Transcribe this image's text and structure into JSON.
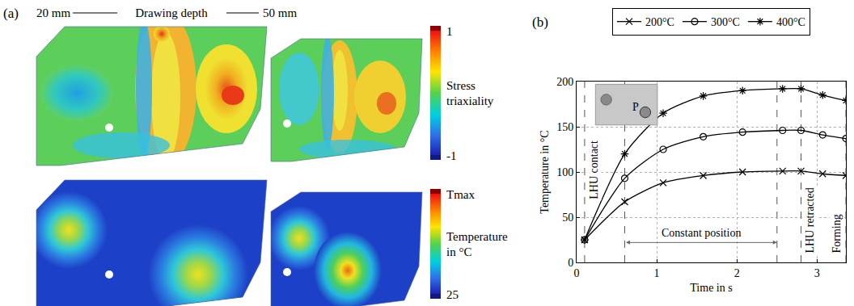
{
  "panel_a": {
    "label": "(a)",
    "header": [
      "20 mm",
      "Drawing depth",
      "50 mm"
    ],
    "colorbars": [
      {
        "title": "Stress triaxiality",
        "top": 1,
        "bottom": -1
      },
      {
        "title": "Temperature in °C",
        "top": "Tmax",
        "bottom": 25
      }
    ]
  },
  "chart_data": {
    "type": "line",
    "panel_label": "(b)",
    "x_label": "Time in s",
    "y_label": "Temperature in °C",
    "x": [
      0.1,
      0.6,
      1.08,
      1.58,
      2.07,
      2.57,
      2.8,
      3.07,
      3.36
    ],
    "series": [
      {
        "name": "200°C",
        "color": "#000000",
        "marker": "x",
        "values": [
          25,
          67,
          88,
          96,
          100,
          101,
          101,
          98,
          96
        ]
      },
      {
        "name": "300°C",
        "color": "#000000",
        "marker": "circle-open",
        "values": [
          25,
          93,
          125,
          139,
          144,
          146,
          146,
          141,
          137
        ]
      },
      {
        "name": "400°C",
        "color": "#000000",
        "marker": "asterisk",
        "values": [
          25,
          120,
          165,
          184,
          190,
          192,
          192,
          185,
          179
        ]
      }
    ],
    "xlim": [
      0,
      3.36
    ],
    "ylim": [
      0,
      200
    ],
    "xticks": [
      0,
      1,
      2,
      3
    ],
    "yticks": [
      0,
      50,
      100,
      150,
      200
    ],
    "grid": true,
    "legend": "top",
    "annotations": [
      {
        "text": "LHU contact",
        "x": 0.1,
        "y": 68
      },
      {
        "text": "LHU retracted",
        "x": 2.8,
        "y": 8
      },
      {
        "text": "Forming",
        "x": 3.36,
        "y": 8
      },
      {
        "text": "Constant position",
        "x0": 0.6,
        "x1": 2.5,
        "y": 22
      }
    ],
    "inset_label": "P"
  }
}
